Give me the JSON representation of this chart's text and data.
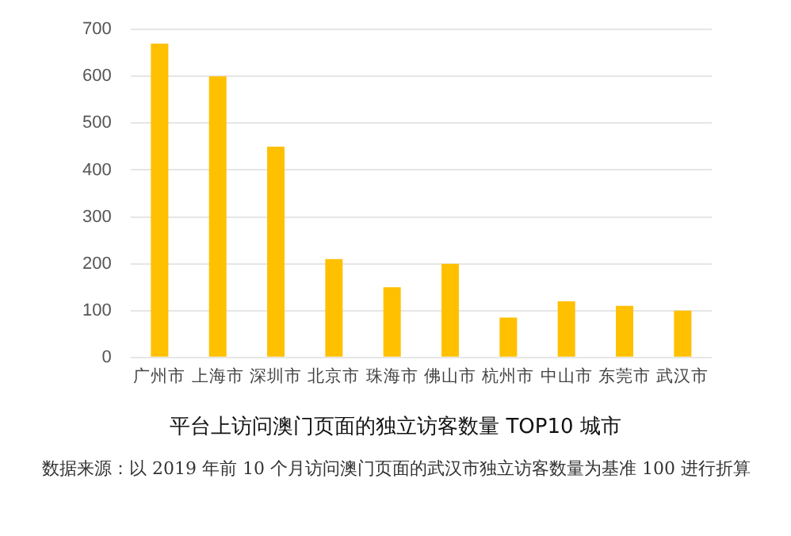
{
  "chart_data": {
    "type": "bar",
    "title": "平台上访问澳门页面的独立访客数量 TOP10 城市",
    "categories": [
      "广州市",
      "上海市",
      "深圳市",
      "北京市",
      "珠海市",
      "佛山市",
      "杭州市",
      "中山市",
      "东莞市",
      "武汉市"
    ],
    "values": [
      670,
      600,
      450,
      210,
      150,
      200,
      85,
      120,
      110,
      100
    ],
    "color": "#ffc000",
    "ylim": [
      0,
      700
    ],
    "yticks": [
      0,
      100,
      200,
      300,
      400,
      500,
      600,
      700
    ],
    "grid": "y",
    "legend": false,
    "annotations": [
      "数据来源：以 2019 年前 10 个月访问澳门页面的武汉市独立访客数量为基准 100 进行折算"
    ]
  }
}
